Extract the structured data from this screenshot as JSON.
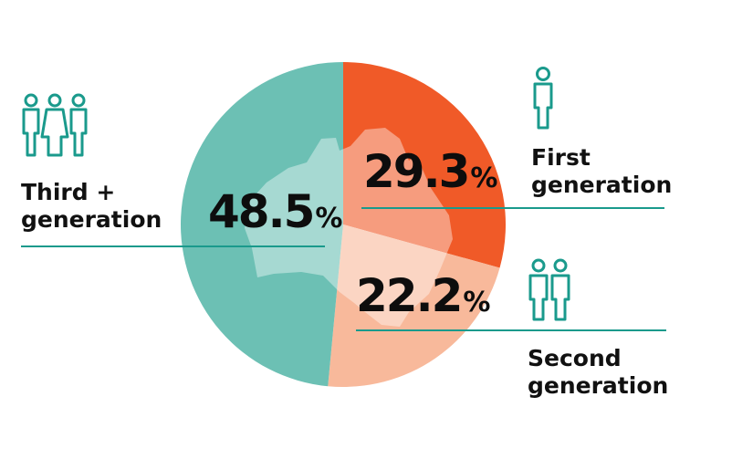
{
  "chart_data": {
    "type": "pie",
    "slices": [
      {
        "name": "First generation",
        "value": 29.3,
        "display": "29.3",
        "color": "#f05a28"
      },
      {
        "name": "Second generation",
        "value": 22.2,
        "display": "22.2",
        "color": "#f8b99b"
      },
      {
        "name": "Third + generation",
        "value": 48.5,
        "display": "48.5",
        "color": "#6cc0b4"
      }
    ],
    "unit": "%",
    "start": "top, clockwise",
    "legend": "none; labels placed beside the pie with people icons"
  },
  "labels": {
    "third": {
      "line1": "Third +",
      "line2": "generation"
    },
    "first": {
      "line1": "First",
      "line2": "generation"
    },
    "second": {
      "line1": "Second",
      "line2": "generation"
    }
  },
  "colors": {
    "leader_line": "#1a9a8c",
    "icon": "#1a9a8c",
    "map_overlay": "#ffffff"
  },
  "icons": {
    "third": "three-people-icon",
    "first": "single-person-icon",
    "second": "two-people-icon"
  }
}
